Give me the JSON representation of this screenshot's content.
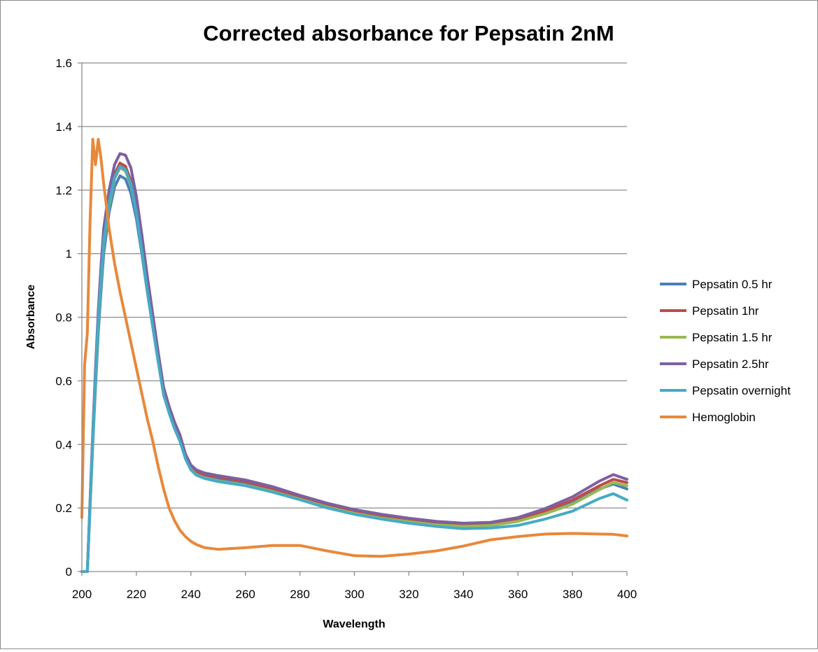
{
  "chart_data": {
    "type": "line",
    "title": "Corrected absorbance for Pepsatin 2nM",
    "xlabel": "Wavelength",
    "ylabel": "Absorbance",
    "xlim": [
      200,
      400
    ],
    "ylim": [
      0,
      1.6
    ],
    "xticks": [
      200,
      220,
      240,
      260,
      280,
      300,
      320,
      340,
      360,
      380,
      400
    ],
    "yticks": [
      0,
      0.2,
      0.4,
      0.6,
      0.8,
      1,
      1.2,
      1.4,
      1.6
    ],
    "ytick_labels": [
      "0",
      "0.2",
      "0.4",
      "0.6",
      "0.8",
      "1",
      "1.2",
      "1.4",
      "1.6"
    ],
    "grid": "horizontal",
    "legend": "right",
    "x": [
      200,
      201,
      202,
      203,
      204,
      205,
      206,
      207,
      208,
      210,
      212,
      214,
      216,
      218,
      220,
      222,
      224,
      226,
      228,
      230,
      232,
      234,
      236,
      238,
      240,
      242,
      245,
      250,
      260,
      270,
      280,
      290,
      300,
      310,
      320,
      330,
      340,
      350,
      360,
      370,
      380,
      390,
      395,
      400
    ],
    "series": [
      {
        "name": "Pepsatin 0.5 hr",
        "color": "#4a7ebb",
        "values": [
          0,
          0,
          0,
          0.2,
          0.4,
          0.58,
          0.75,
          0.88,
          1.0,
          1.13,
          1.21,
          1.245,
          1.235,
          1.19,
          1.11,
          1.0,
          0.88,
          0.77,
          0.66,
          0.56,
          0.5,
          0.45,
          0.41,
          0.36,
          0.325,
          0.31,
          0.3,
          0.29,
          0.275,
          0.255,
          0.23,
          0.205,
          0.185,
          0.17,
          0.158,
          0.148,
          0.142,
          0.145,
          0.158,
          0.185,
          0.215,
          0.26,
          0.275,
          0.26
        ]
      },
      {
        "name": "Pepsatin 1hr",
        "color": "#be4b48",
        "values": [
          0,
          0,
          0,
          0.22,
          0.43,
          0.62,
          0.8,
          0.93,
          1.05,
          1.17,
          1.25,
          1.285,
          1.275,
          1.23,
          1.14,
          1.02,
          0.9,
          0.78,
          0.67,
          0.57,
          0.51,
          0.46,
          0.42,
          0.365,
          0.33,
          0.315,
          0.305,
          0.298,
          0.283,
          0.262,
          0.236,
          0.21,
          0.19,
          0.175,
          0.163,
          0.153,
          0.148,
          0.152,
          0.165,
          0.19,
          0.225,
          0.27,
          0.29,
          0.28
        ]
      },
      {
        "name": "Pepsatin 1.5 hr",
        "color": "#98b954",
        "values": [
          0,
          0,
          0,
          0.2,
          0.41,
          0.6,
          0.78,
          0.91,
          1.03,
          1.15,
          1.235,
          1.27,
          1.26,
          1.215,
          1.13,
          1.01,
          0.89,
          0.775,
          0.665,
          0.56,
          0.5,
          0.45,
          0.41,
          0.36,
          0.322,
          0.305,
          0.295,
          0.285,
          0.272,
          0.252,
          0.228,
          0.203,
          0.183,
          0.168,
          0.157,
          0.147,
          0.142,
          0.145,
          0.158,
          0.182,
          0.212,
          0.258,
          0.28,
          0.27
        ]
      },
      {
        "name": "Pepsatin 2.5hr",
        "color": "#7d60a0",
        "values": [
          0,
          0,
          0,
          0.22,
          0.44,
          0.64,
          0.82,
          0.96,
          1.08,
          1.2,
          1.28,
          1.315,
          1.31,
          1.27,
          1.18,
          1.06,
          0.93,
          0.81,
          0.69,
          0.58,
          0.52,
          0.47,
          0.43,
          0.37,
          0.335,
          0.32,
          0.31,
          0.302,
          0.288,
          0.267,
          0.24,
          0.215,
          0.195,
          0.18,
          0.168,
          0.158,
          0.152,
          0.155,
          0.17,
          0.198,
          0.235,
          0.285,
          0.305,
          0.29
        ]
      },
      {
        "name": "Pepsatin overnight",
        "color": "#46aac5",
        "values": [
          0,
          0,
          0,
          0.21,
          0.42,
          0.61,
          0.79,
          0.92,
          1.04,
          1.16,
          1.24,
          1.275,
          1.265,
          1.22,
          1.13,
          1.01,
          0.885,
          0.77,
          0.66,
          0.555,
          0.5,
          0.45,
          0.41,
          0.355,
          0.32,
          0.303,
          0.293,
          0.283,
          0.27,
          0.25,
          0.226,
          0.2,
          0.18,
          0.165,
          0.152,
          0.142,
          0.135,
          0.137,
          0.145,
          0.165,
          0.19,
          0.23,
          0.245,
          0.225
        ]
      },
      {
        "name": "Hemoglobin",
        "color": "#e8883a",
        "values": [
          0.17,
          0.65,
          0.75,
          1.1,
          1.36,
          1.28,
          1.36,
          1.3,
          1.22,
          1.08,
          0.97,
          0.88,
          0.8,
          0.72,
          0.64,
          0.56,
          0.48,
          0.41,
          0.33,
          0.26,
          0.2,
          0.16,
          0.13,
          0.11,
          0.095,
          0.085,
          0.075,
          0.07,
          0.075,
          0.082,
          0.082,
          0.065,
          0.05,
          0.048,
          0.055,
          0.065,
          0.08,
          0.1,
          0.11,
          0.118,
          0.12,
          0.118,
          0.117,
          0.112
        ]
      }
    ]
  }
}
